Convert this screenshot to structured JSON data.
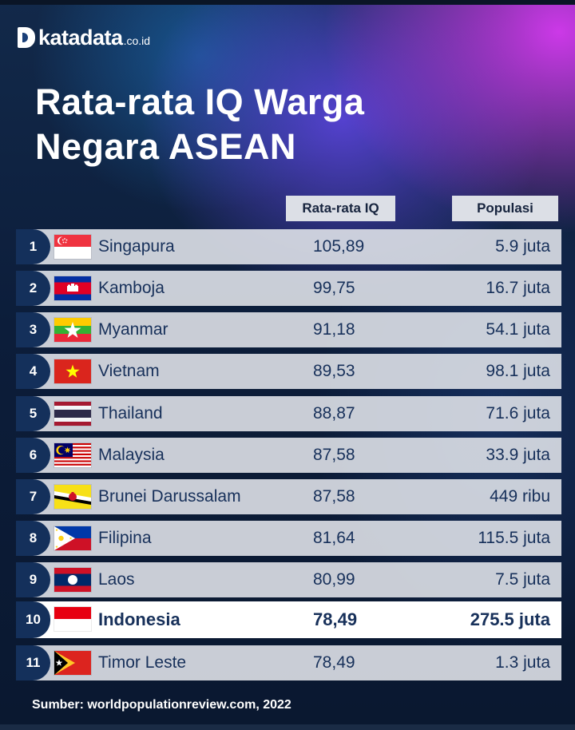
{
  "brand": {
    "name": "katadata",
    "suffix": ".co.id"
  },
  "title_line1": "Rata-rata IQ Warga",
  "title_line2": "Negara ASEAN",
  "headers": {
    "iq": "Rata-rata IQ",
    "population": "Populasi"
  },
  "source": "Sumber: worldpopulationreview.com, 2022",
  "colors": {
    "rank_badge": "#14305b",
    "row_background": "#dee1e8",
    "highlight_row": "#ffffff",
    "text": "#17305a",
    "accent_magenta": "#d63af0"
  },
  "chart_data": {
    "type": "table",
    "columns": [
      "Rata-rata IQ",
      "Populasi"
    ],
    "highlight_rank": 10,
    "rows": [
      {
        "rank": "1",
        "flag": "singapore-flag",
        "country": "Singapura",
        "iq": "105,89",
        "iq_value": 105.89,
        "population": "5.9 juta"
      },
      {
        "rank": "2",
        "flag": "cambodia-flag",
        "country": "Kamboja",
        "iq": "99,75",
        "iq_value": 99.75,
        "population": "16.7 juta"
      },
      {
        "rank": "3",
        "flag": "myanmar-flag",
        "country": "Myanmar",
        "iq": "91,18",
        "iq_value": 91.18,
        "population": "54.1 juta"
      },
      {
        "rank": "4",
        "flag": "vietnam-flag",
        "country": "Vietnam",
        "iq": "89,53",
        "iq_value": 89.53,
        "population": "98.1 juta"
      },
      {
        "rank": "5",
        "flag": "thailand-flag",
        "country": "Thailand",
        "iq": "88,87",
        "iq_value": 88.87,
        "population": "71.6 juta"
      },
      {
        "rank": "6",
        "flag": "malaysia-flag",
        "country": "Malaysia",
        "iq": "87,58",
        "iq_value": 87.58,
        "population": "33.9 juta"
      },
      {
        "rank": "7",
        "flag": "brunei-flag",
        "country": "Brunei Darussalam",
        "iq": "87,58",
        "iq_value": 87.58,
        "population": "449 ribu"
      },
      {
        "rank": "8",
        "flag": "philippines-flag",
        "country": "Filipina",
        "iq": "81,64",
        "iq_value": 81.64,
        "population": "115.5 juta"
      },
      {
        "rank": "9",
        "flag": "laos-flag",
        "country": "Laos",
        "iq": "80,99",
        "iq_value": 80.99,
        "population": "7.5 juta"
      },
      {
        "rank": "10",
        "flag": "indonesia-flag",
        "country": "Indonesia",
        "iq": "78,49",
        "iq_value": 78.49,
        "population": "275.5 juta"
      },
      {
        "rank": "11",
        "flag": "timor-leste-flag",
        "country": "Timor Leste",
        "iq": "78,49",
        "iq_value": 78.49,
        "population": "1.3 juta"
      }
    ]
  }
}
